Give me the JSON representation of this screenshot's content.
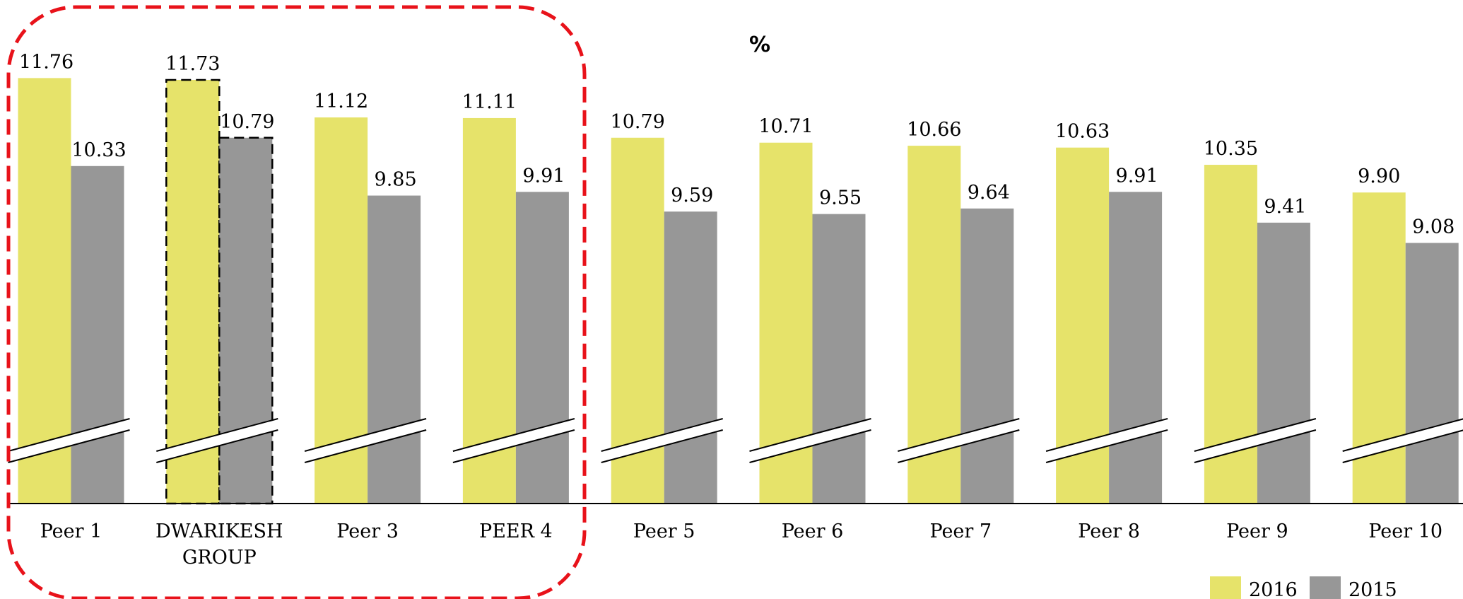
{
  "chart_data": {
    "type": "bar",
    "title": "%",
    "categories": [
      [
        "Peer 1"
      ],
      [
        "DWARIKESH",
        "GROUP"
      ],
      [
        "Peer 3"
      ],
      [
        "PEER 4"
      ],
      [
        "Peer 5"
      ],
      [
        "Peer 6"
      ],
      [
        "Peer 7"
      ],
      [
        "Peer 8"
      ],
      [
        "Peer 9"
      ],
      [
        "Peer 10"
      ]
    ],
    "series": [
      {
        "name": "2016",
        "color": "#e6e36a",
        "values": [
          11.76,
          11.73,
          11.12,
          11.11,
          10.79,
          10.71,
          10.66,
          10.63,
          10.35,
          9.9
        ],
        "labels": [
          "11.76",
          "11.73",
          "11.12",
          "11.11",
          "10.79",
          "10.71",
          "10.66",
          "10.63",
          "10.35",
          "9.90"
        ]
      },
      {
        "name": "2015",
        "color": "#979797",
        "values": [
          10.33,
          10.79,
          9.85,
          9.91,
          9.59,
          9.55,
          9.64,
          9.91,
          9.41,
          9.08
        ],
        "labels": [
          "10.33",
          "10.79",
          "9.85",
          "9.91",
          "9.59",
          "9.55",
          "9.64",
          "9.91",
          "9.41",
          "9.08"
        ]
      }
    ],
    "highlighted_category_index": 1,
    "highlight_group_range": [
      0,
      3
    ],
    "axis_break": true,
    "grid": false,
    "legend_position": "bottom-right"
  }
}
